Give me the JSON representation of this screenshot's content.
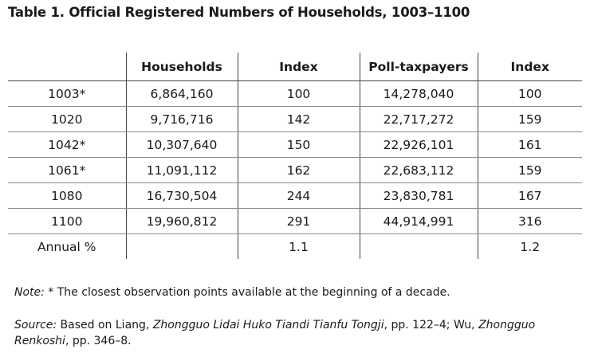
{
  "title": "Table 1. Official Registered Numbers of Households, 1003–1100",
  "table": {
    "headers": [
      "",
      "Households",
      "Index",
      "Poll-taxpayers",
      "Index"
    ],
    "rows": [
      [
        "1003*",
        "6,864,160",
        "100",
        "14,278,040",
        "100"
      ],
      [
        "1020",
        "9,716,716",
        "142",
        "22,717,272",
        "159"
      ],
      [
        "1042*",
        "10,307,640",
        "150",
        "22,926,101",
        "161"
      ],
      [
        "1061*",
        "11,091,112",
        "162",
        "22,683,112",
        "159"
      ],
      [
        "1080",
        "16,730,504",
        "244",
        "23,830,781",
        "167"
      ],
      [
        "1100",
        "19,960,812",
        "291",
        "44,914,991",
        "316"
      ],
      [
        "Annual %",
        "",
        "1.1",
        "",
        "1.2"
      ]
    ]
  },
  "note": {
    "label": "Note:",
    "text": " * The closest observation points available at the beginning of a decade."
  },
  "source": {
    "label": "Source:",
    "text1": " Based on Liang, ",
    "title1": "Zhongguo Lidai Huko Tiandi Tianfu Tongji",
    "text2": ", pp. 122–4; Wu, ",
    "title2": "Zhongguo Renkoshi",
    "text3": ", pp. 346–8."
  }
}
